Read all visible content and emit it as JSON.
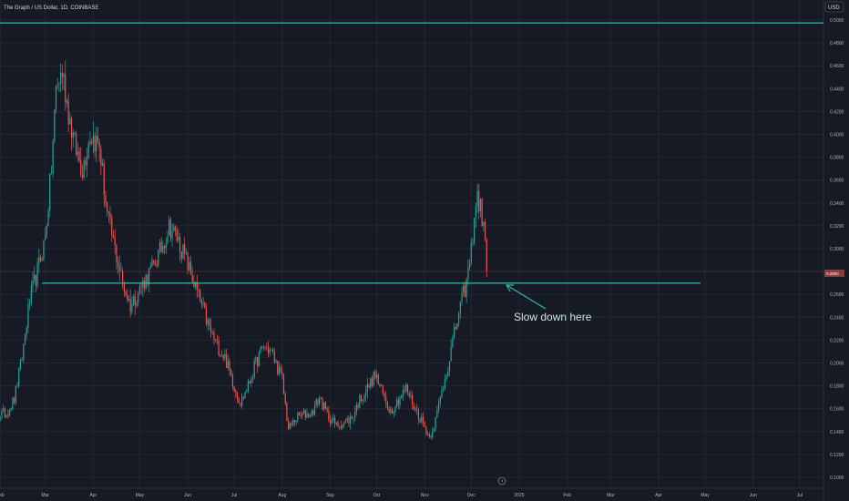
{
  "header": {
    "title": "The Graph / US Dollar, 1D, COINBASE",
    "currency": "USD"
  },
  "colors": {
    "background": "#161a25",
    "grid": "#232733",
    "up": "#26a69a",
    "down": "#ef5350",
    "hline": "#2bbbad",
    "annotation": "#cfe3e0",
    "price_label_bg": "#8a3b3b"
  },
  "chart_data": {
    "type": "candlestick",
    "title": "The Graph / US Dollar, 1D, COINBASE",
    "xlabel": "",
    "ylabel": "",
    "ylim": [
      0.096,
      0.506
    ],
    "grid": true,
    "x_ticks": [
      "Feb",
      "Mar",
      "Apr",
      "May",
      "Jun",
      "Jul",
      "Aug",
      "Sep",
      "Oct",
      "Nov",
      "Dec",
      "2025",
      "Feb",
      "Mar",
      "Apr",
      "May",
      "Jun",
      "Jul"
    ],
    "y_ticks": [
      "0.1000",
      "0.1200",
      "0.1400",
      "0.1600",
      "0.1800",
      "0.2000",
      "0.2200",
      "0.2400",
      "0.2600",
      "0.2800",
      "0.3000",
      "0.3200",
      "0.3400",
      "0.3600",
      "0.3800",
      "0.4000",
      "0.4200",
      "0.4400",
      "0.4600",
      "0.4800",
      "0.5000"
    ],
    "current_price": {
      "value": 0.28,
      "label": "0.2800"
    },
    "horizontal_lines": [
      {
        "value": 0.4975
      },
      {
        "value": 0.2698
      }
    ],
    "annotation": {
      "text": "Slow down here"
    },
    "price_path": [
      [
        "2024-01-20",
        0.158
      ],
      [
        "2024-01-25",
        0.152
      ],
      [
        "2024-01-30",
        0.155
      ],
      [
        "2024-02-05",
        0.156
      ],
      [
        "2024-02-10",
        0.168
      ],
      [
        "2024-02-15",
        0.205
      ],
      [
        "2024-02-20",
        0.255
      ],
      [
        "2024-02-25",
        0.28
      ],
      [
        "2024-03-01",
        0.31
      ],
      [
        "2024-03-05",
        0.37
      ],
      [
        "2024-03-08",
        0.44
      ],
      [
        "2024-03-12",
        0.455
      ],
      [
        "2024-03-16",
        0.42
      ],
      [
        "2024-03-20",
        0.39
      ],
      [
        "2024-03-25",
        0.37
      ],
      [
        "2024-03-30",
        0.4
      ],
      [
        "2024-04-05",
        0.39
      ],
      [
        "2024-04-10",
        0.33
      ],
      [
        "2024-04-15",
        0.3
      ],
      [
        "2024-04-20",
        0.27
      ],
      [
        "2024-04-25",
        0.25
      ],
      [
        "2024-05-01",
        0.265
      ],
      [
        "2024-05-10",
        0.285
      ],
      [
        "2024-05-15",
        0.3
      ],
      [
        "2024-05-20",
        0.32
      ],
      [
        "2024-05-25",
        0.31
      ],
      [
        "2024-05-31",
        0.29
      ],
      [
        "2024-06-05",
        0.27
      ],
      [
        "2024-06-10",
        0.25
      ],
      [
        "2024-06-15",
        0.23
      ],
      [
        "2024-06-20",
        0.215
      ],
      [
        "2024-06-25",
        0.205
      ],
      [
        "2024-07-01",
        0.18
      ],
      [
        "2024-07-05",
        0.165
      ],
      [
        "2024-07-10",
        0.18
      ],
      [
        "2024-07-15",
        0.2
      ],
      [
        "2024-07-20",
        0.215
      ],
      [
        "2024-07-25",
        0.21
      ],
      [
        "2024-08-01",
        0.185
      ],
      [
        "2024-08-05",
        0.142
      ],
      [
        "2024-08-10",
        0.152
      ],
      [
        "2024-08-15",
        0.155
      ],
      [
        "2024-08-20",
        0.156
      ],
      [
        "2024-08-25",
        0.17
      ],
      [
        "2024-08-30",
        0.155
      ],
      [
        "2024-09-05",
        0.145
      ],
      [
        "2024-09-10",
        0.148
      ],
      [
        "2024-09-15",
        0.152
      ],
      [
        "2024-09-20",
        0.168
      ],
      [
        "2024-09-25",
        0.178
      ],
      [
        "2024-09-30",
        0.19
      ],
      [
        "2024-10-05",
        0.172
      ],
      [
        "2024-10-10",
        0.158
      ],
      [
        "2024-10-15",
        0.168
      ],
      [
        "2024-10-20",
        0.178
      ],
      [
        "2024-10-25",
        0.162
      ],
      [
        "2024-10-30",
        0.15
      ],
      [
        "2024-11-04",
        0.135
      ],
      [
        "2024-11-08",
        0.15
      ],
      [
        "2024-11-12",
        0.175
      ],
      [
        "2024-11-16",
        0.198
      ],
      [
        "2024-11-20",
        0.225
      ],
      [
        "2024-11-24",
        0.25
      ],
      [
        "2024-11-28",
        0.27
      ],
      [
        "2024-12-01",
        0.298
      ],
      [
        "2024-12-03",
        0.33
      ],
      [
        "2024-12-05",
        0.345
      ],
      [
        "2024-12-07",
        0.335
      ],
      [
        "2024-12-09",
        0.32
      ],
      [
        "2024-12-11",
        0.28
      ]
    ]
  }
}
